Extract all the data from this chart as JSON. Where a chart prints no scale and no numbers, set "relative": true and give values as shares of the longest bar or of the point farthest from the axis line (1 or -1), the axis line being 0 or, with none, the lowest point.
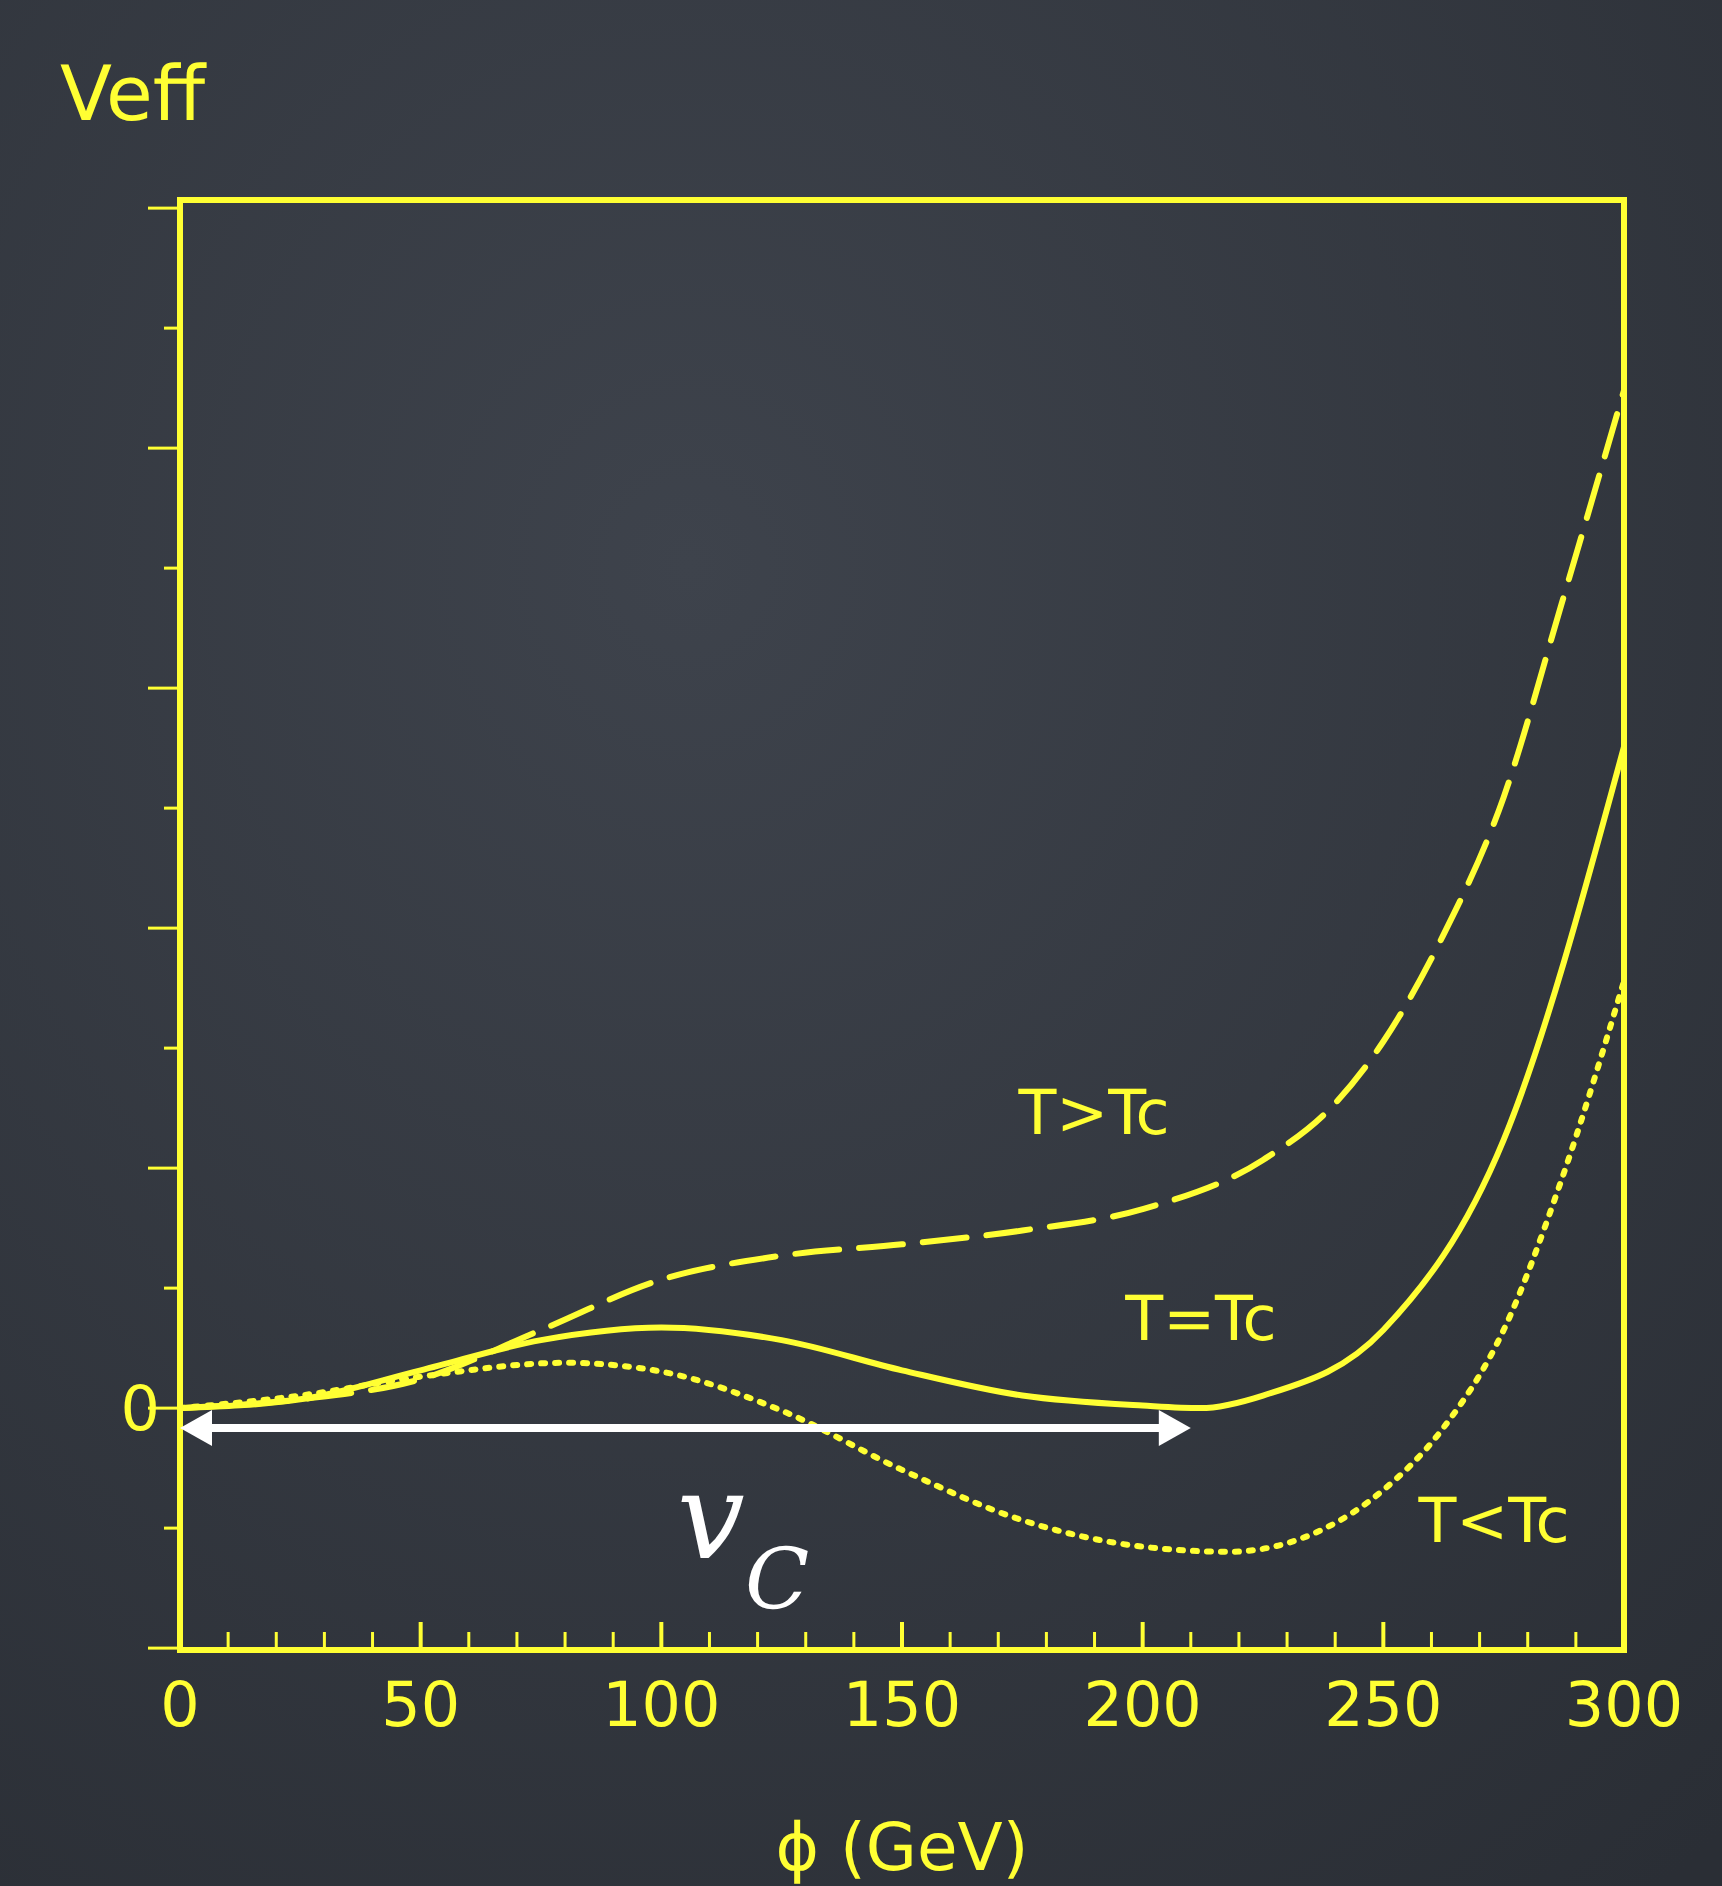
{
  "chart_data": {
    "type": "line",
    "relative": true,
    "ylabel": "Veff",
    "xlabel": "ϕ (GeV)",
    "xlim": [
      0,
      300
    ],
    "xticks": [
      0,
      50,
      100,
      150,
      200,
      250,
      300
    ],
    "grid": false,
    "marker": "none",
    "series": [
      {
        "name": "T>Tc",
        "color": "#ffff33",
        "line_style": "dashed",
        "x": [
          0,
          25,
          50,
          75,
          100,
          125,
          150,
          175,
          200,
          225,
          240,
          250,
          262,
          275,
          287,
          300
        ],
        "values": [
          0.192,
          0.199,
          0.215,
          0.254,
          0.294,
          0.313,
          0.322,
          0.333,
          0.35,
          0.389,
          0.434,
          0.483,
          0.564,
          0.677,
          0.83,
          1
        ]
      },
      {
        "name": "T=Tc",
        "color": "#ffff33",
        "line_style": "solid",
        "x": [
          0,
          25,
          50,
          75,
          100,
          125,
          150,
          175,
          200,
          212,
          225,
          250,
          275,
          300
        ],
        "values": [
          0.192,
          0.199,
          0.222,
          0.246,
          0.256,
          0.246,
          0.222,
          0.202,
          0.194,
          0.192,
          0.202,
          0.254,
          0.405,
          0.717
        ]
      },
      {
        "name": "T<Tc",
        "color": "#ffff33",
        "line_style": "dotted",
        "x": [
          0,
          25,
          50,
          80,
          100,
          125,
          150,
          175,
          200,
          218,
          237,
          250,
          262,
          275,
          287,
          300
        ],
        "values": [
          0.192,
          0.202,
          0.217,
          0.228,
          0.221,
          0.19,
          0.143,
          0.103,
          0.082,
          0.078,
          0.095,
          0.127,
          0.174,
          0.254,
          0.373,
          0.531
        ]
      }
    ],
    "annotations": [
      "0",
      "v$_{C}$"
    ]
  }
}
